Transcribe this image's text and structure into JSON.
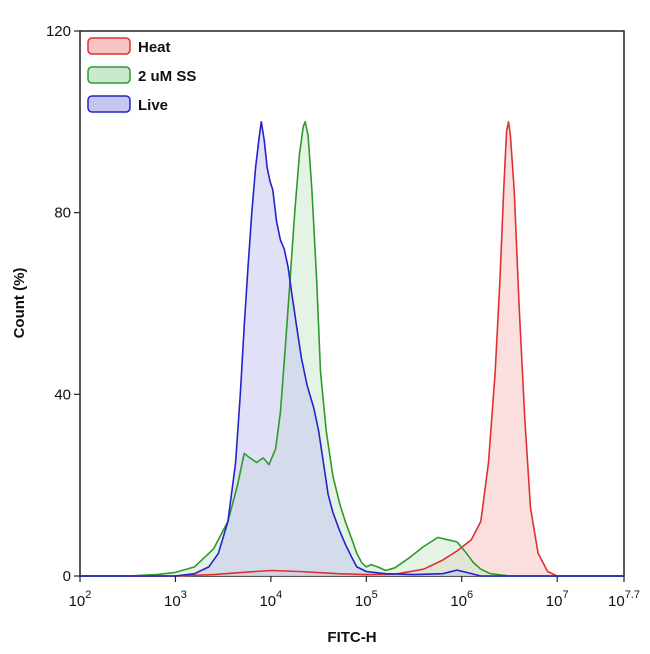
{
  "chart_data": {
    "type": "area",
    "title": "",
    "xlabel": "FITC-H",
    "ylabel": "Count (%)",
    "x_scale": "log10",
    "xlim": [
      2,
      7.7
    ],
    "ylim": [
      0,
      120
    ],
    "x_ticks": [
      {
        "value": 2,
        "base": "10",
        "exp": "2"
      },
      {
        "value": 3,
        "base": "10",
        "exp": "3"
      },
      {
        "value": 4,
        "base": "10",
        "exp": "4"
      },
      {
        "value": 5,
        "base": "10",
        "exp": "5"
      },
      {
        "value": 6,
        "base": "10",
        "exp": "6"
      },
      {
        "value": 7,
        "base": "10",
        "exp": "7"
      },
      {
        "value": 7.7,
        "base": "10",
        "exp": "7.7"
      }
    ],
    "y_ticks": [
      {
        "value": 0,
        "label": "0"
      },
      {
        "value": 40,
        "label": "40"
      },
      {
        "value": 80,
        "label": "80"
      },
      {
        "value": 120,
        "label": "120"
      }
    ],
    "legend_position": "top-left",
    "series": [
      {
        "name": "Heat",
        "stroke": "#e03030",
        "fill": "#f7c4c4",
        "points": [
          [
            2,
            0
          ],
          [
            2.5,
            0
          ],
          [
            3,
            0
          ],
          [
            3.4,
            0.3
          ],
          [
            3.7,
            0.8
          ],
          [
            4,
            1.2
          ],
          [
            4.3,
            1
          ],
          [
            4.7,
            0.5
          ],
          [
            5,
            0.3
          ],
          [
            5.3,
            0.4
          ],
          [
            5.6,
            1.5
          ],
          [
            5.8,
            3.5
          ],
          [
            5.95,
            5.5
          ],
          [
            6.1,
            8
          ],
          [
            6.2,
            12
          ],
          [
            6.28,
            25
          ],
          [
            6.35,
            45
          ],
          [
            6.4,
            65
          ],
          [
            6.44,
            85
          ],
          [
            6.47,
            98
          ],
          [
            6.49,
            100
          ],
          [
            6.51,
            97
          ],
          [
            6.55,
            85
          ],
          [
            6.6,
            60
          ],
          [
            6.66,
            35
          ],
          [
            6.72,
            15
          ],
          [
            6.8,
            5
          ],
          [
            6.9,
            1
          ],
          [
            7,
            0
          ],
          [
            7.7,
            0
          ]
        ]
      },
      {
        "name": "2 uM SS",
        "stroke": "#2e9a2e",
        "fill": "#cde9cd",
        "points": [
          [
            2,
            0
          ],
          [
            2.5,
            0
          ],
          [
            2.8,
            0.3
          ],
          [
            3,
            0.8
          ],
          [
            3.2,
            2
          ],
          [
            3.4,
            6
          ],
          [
            3.55,
            12
          ],
          [
            3.65,
            20
          ],
          [
            3.72,
            27
          ],
          [
            3.78,
            26
          ],
          [
            3.85,
            25
          ],
          [
            3.92,
            26
          ],
          [
            3.98,
            24.5
          ],
          [
            4.05,
            28
          ],
          [
            4.1,
            36
          ],
          [
            4.15,
            50
          ],
          [
            4.2,
            65
          ],
          [
            4.25,
            80
          ],
          [
            4.3,
            93
          ],
          [
            4.34,
            99
          ],
          [
            4.36,
            100
          ],
          [
            4.39,
            97
          ],
          [
            4.43,
            85
          ],
          [
            4.48,
            65
          ],
          [
            4.52,
            45
          ],
          [
            4.58,
            32
          ],
          [
            4.65,
            22
          ],
          [
            4.72,
            16
          ],
          [
            4.78,
            12
          ],
          [
            4.85,
            8
          ],
          [
            4.9,
            5
          ],
          [
            4.95,
            3
          ],
          [
            5,
            2
          ],
          [
            5.05,
            2.5
          ],
          [
            5.12,
            2
          ],
          [
            5.2,
            1.2
          ],
          [
            5.3,
            1.8
          ],
          [
            5.45,
            4
          ],
          [
            5.6,
            6.5
          ],
          [
            5.75,
            8.5
          ],
          [
            5.85,
            8
          ],
          [
            5.95,
            7.5
          ],
          [
            6.05,
            5
          ],
          [
            6.12,
            3
          ],
          [
            6.2,
            1.5
          ],
          [
            6.3,
            0.5
          ],
          [
            6.5,
            0
          ],
          [
            7.7,
            0
          ]
        ]
      },
      {
        "name": "Live",
        "stroke": "#2323cc",
        "fill": "#c6c6ee",
        "points": [
          [
            2,
            0
          ],
          [
            2.5,
            0
          ],
          [
            3,
            0
          ],
          [
            3.2,
            0.5
          ],
          [
            3.35,
            2
          ],
          [
            3.45,
            5
          ],
          [
            3.55,
            12
          ],
          [
            3.63,
            25
          ],
          [
            3.68,
            40
          ],
          [
            3.72,
            55
          ],
          [
            3.76,
            68
          ],
          [
            3.8,
            80
          ],
          [
            3.84,
            90
          ],
          [
            3.88,
            97
          ],
          [
            3.9,
            100
          ],
          [
            3.93,
            96
          ],
          [
            3.96,
            90
          ],
          [
            3.99,
            87
          ],
          [
            4.02,
            85
          ],
          [
            4.06,
            78
          ],
          [
            4.1,
            74
          ],
          [
            4.14,
            72
          ],
          [
            4.18,
            68
          ],
          [
            4.22,
            62
          ],
          [
            4.27,
            55
          ],
          [
            4.32,
            48
          ],
          [
            4.38,
            42
          ],
          [
            4.45,
            37
          ],
          [
            4.5,
            32
          ],
          [
            4.55,
            25
          ],
          [
            4.6,
            18
          ],
          [
            4.65,
            14
          ],
          [
            4.72,
            10
          ],
          [
            4.78,
            7
          ],
          [
            4.85,
            4
          ],
          [
            4.9,
            2
          ],
          [
            5,
            1
          ],
          [
            5.2,
            0.5
          ],
          [
            5.5,
            0.3
          ],
          [
            5.8,
            0.5
          ],
          [
            5.95,
            1.3
          ],
          [
            6.05,
            0.8
          ],
          [
            6.2,
            0
          ],
          [
            7.7,
            0
          ]
        ]
      }
    ]
  }
}
